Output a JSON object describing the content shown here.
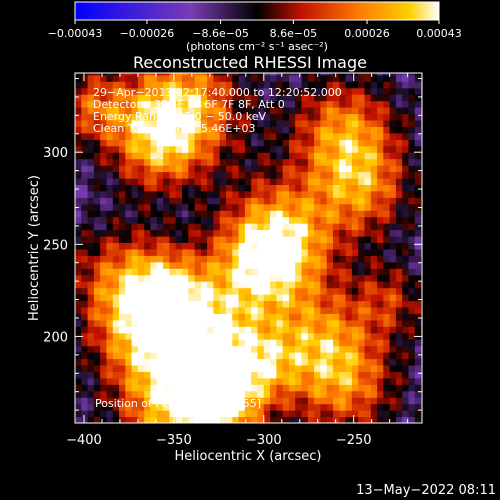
{
  "chart_data": {
    "type": "heatmap",
    "title": "Reconstructed RHESSI Image",
    "xlabel": "Heliocentric X (arcsec)",
    "ylabel": "Heliocentric Y (arcsec)",
    "xlim": [
      -405,
      -212
    ],
    "ylim": [
      153,
      343
    ],
    "x_ticks": [
      {
        "value": -400,
        "label": "−400"
      },
      {
        "value": -350,
        "label": "−350"
      },
      {
        "value": -300,
        "label": "−300"
      },
      {
        "value": -250,
        "label": "−250"
      }
    ],
    "y_ticks": [
      {
        "value": 200,
        "label": "200"
      },
      {
        "value": 250,
        "label": "250"
      },
      {
        "value": 300,
        "label": "300"
      }
    ],
    "colorbar": {
      "range": [
        -0.00043,
        0.00043
      ],
      "units_label": "(photons cm⁻² s⁻¹ asec⁻²)",
      "ticks": [
        {
          "value": -0.00043,
          "label": "−0.00043"
        },
        {
          "value": -0.00026,
          "label": "−0.00026"
        },
        {
          "value": -8.6e-05,
          "label": "−8.6e−05"
        },
        {
          "value": 8.6e-05,
          "label": "8.6e−05"
        },
        {
          "value": 0.00026,
          "label": "0.00026"
        },
        {
          "value": 0.00043,
          "label": "0.00043"
        }
      ]
    },
    "annotations": [
      "29−Apr−2013 12:17:40.000 to 12:20:52.000",
      "Detectors: 3F 4F 5F 6F 7F 8F, Att 0",
      "Energy Range: 25.0 − 50.0 keV",
      "Clean     Total counts: 5.46E+03"
    ],
    "peak_label": "Position of Peak = [−343,155]",
    "peak_position": [
      -343,
      155
    ],
    "grid": false
  },
  "footer": {
    "date_text": "13−May−2022 08:11"
  }
}
